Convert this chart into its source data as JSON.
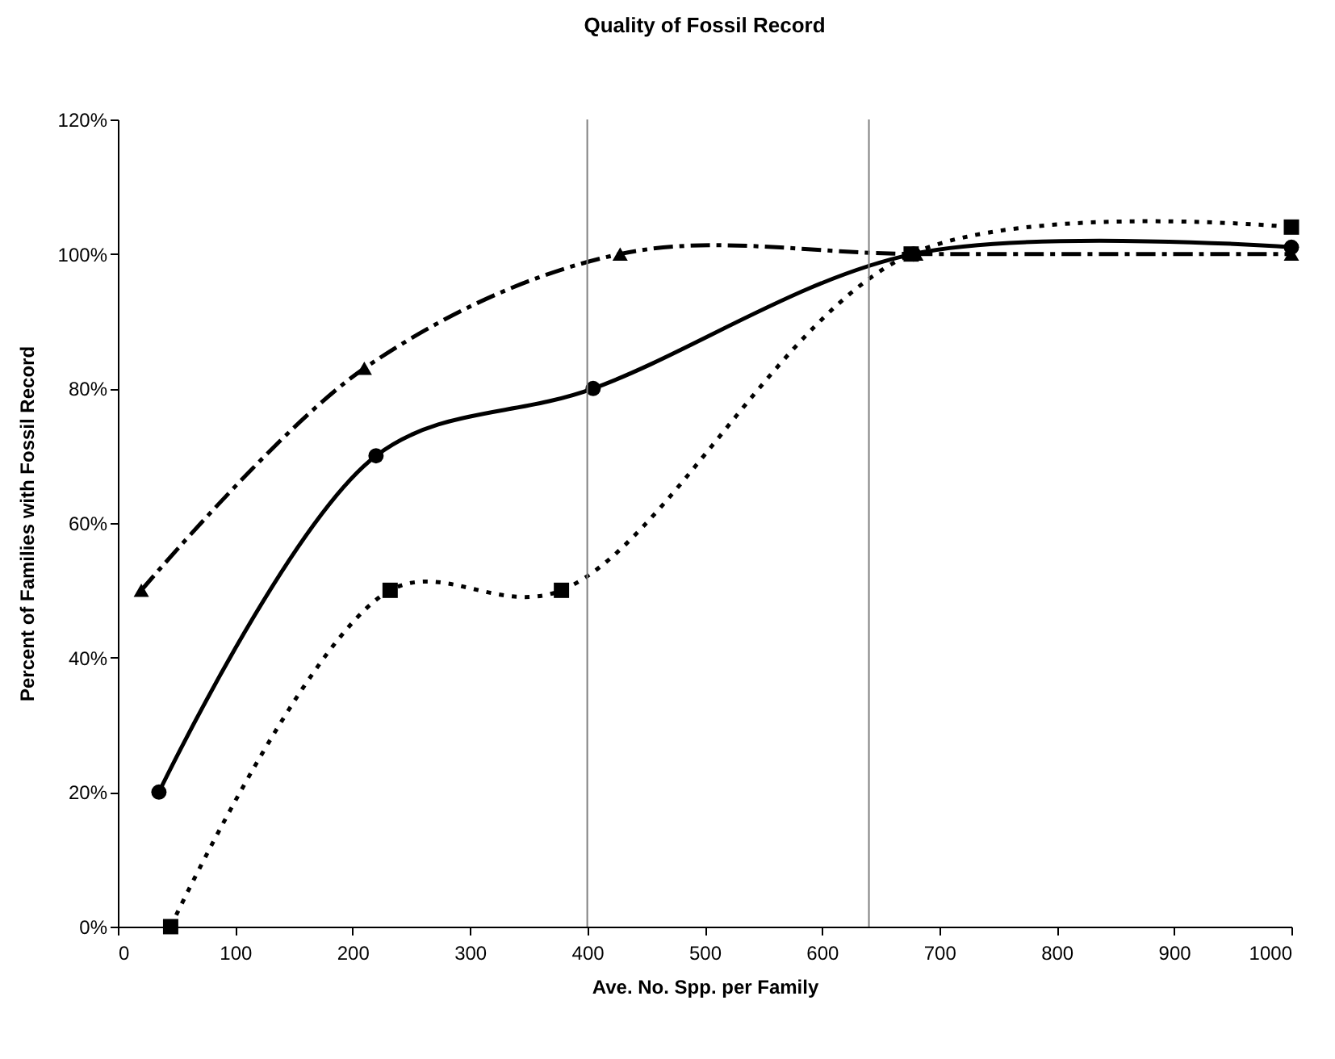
{
  "chart_data": {
    "type": "line",
    "title": "Quality of Fossil Record",
    "xlabel": "Ave. No. Spp. per Family",
    "ylabel": "Percent of Families with Fossil Record",
    "series": [
      {
        "color": "#000000",
        "marker": "triangle",
        "line_style": "dashed",
        "x": [
          20,
          210,
          428,
          680,
          1000
        ],
        "values": [
          50,
          83,
          100,
          100,
          100
        ]
      },
      {
        "color": "#000000",
        "marker": "circle",
        "line_style": "solid",
        "x": [
          35,
          220,
          405,
          678,
          1000
        ],
        "values": [
          20,
          70,
          80,
          100,
          101
        ]
      },
      {
        "color": "#000000",
        "marker": "square",
        "line_style": "dotted",
        "x": [
          45,
          232,
          378,
          676,
          1000
        ],
        "values": [
          0,
          50,
          50,
          100,
          104
        ]
      }
    ],
    "xlim": [
      0,
      1000
    ],
    "xticks": [
      0,
      100,
      200,
      300,
      400,
      500,
      600,
      700,
      800,
      900,
      1000
    ],
    "ylim": [
      0,
      120
    ],
    "yticks": [
      {
        "value": 0,
        "label": "0%"
      },
      {
        "value": 20,
        "label": "20%"
      },
      {
        "value": 40,
        "label": "40%"
      },
      {
        "value": 60,
        "label": "60%"
      },
      {
        "value": 80,
        "label": "80%"
      },
      {
        "value": 100,
        "label": "100%"
      },
      {
        "value": 120,
        "label": "120%"
      }
    ],
    "ref_lines": [
      {
        "axis": "x",
        "value": 400,
        "color": "#808080"
      },
      {
        "axis": "x",
        "value": 640,
        "color": "#808080"
      }
    ],
    "grid": false
  }
}
